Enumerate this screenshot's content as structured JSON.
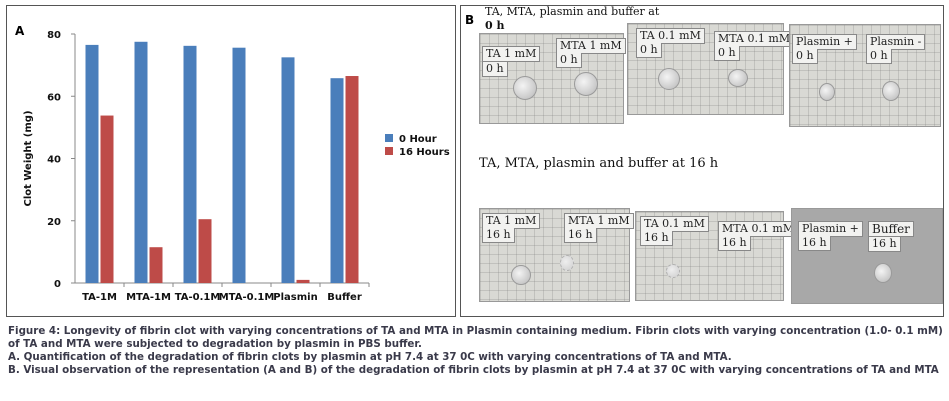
{
  "panel_a": {
    "label": "A"
  },
  "panel_b": {
    "label": "B",
    "heading_top_line1": "TA, MTA, plasmin and buffer at",
    "heading_top_line2": "0 h",
    "heading_mid": "TA, MTA, plasmin and buffer at 16 h",
    "photos": [
      {
        "tags": [
          "TA 1 mM",
          "0 h",
          "MTA 1 mM",
          "0 h"
        ]
      },
      {
        "tags": [
          "TA 0.1 mM",
          "0 h",
          "MTA 0.1 mM",
          "0 h"
        ]
      },
      {
        "tags": [
          "Plasmin +",
          "0 h",
          "Plasmin -",
          "0 h"
        ]
      },
      {
        "tags": [
          "TA 1 mM",
          "16 h",
          "MTA 1 mM",
          "16 h"
        ]
      },
      {
        "tags": [
          "TA 0.1 mM",
          "16 h",
          "MTA 0.1 mM",
          "16 h"
        ]
      },
      {
        "tags": [
          "Plasmin +",
          "16 h",
          "Buffer",
          "16 h"
        ]
      }
    ]
  },
  "chart_data": {
    "type": "bar",
    "title": "",
    "xlabel": "",
    "ylabel": "Clot Weight (mg)",
    "ylim": [
      0,
      80
    ],
    "yticks": [
      0,
      20,
      40,
      60,
      80
    ],
    "categories": [
      "TA-1M",
      "MTA-1M",
      "TA-0.1M",
      "MTA-0.1M",
      "Plasmin",
      "Buffer"
    ],
    "series": [
      {
        "name": "0 Hour",
        "color": "#4a7ebb",
        "values": [
          76.5,
          77.5,
          76.2,
          75.6,
          72.5,
          65.8
        ]
      },
      {
        "name": "16 Hours",
        "color": "#be4b48",
        "values": [
          53.8,
          11.5,
          20.5,
          0,
          1.0,
          66.5
        ]
      }
    ],
    "legend_position": "right",
    "grid": false
  },
  "caption": {
    "line1": "Figure 4: Longevity of fibrin clot with varying concentrations of TA  and MTA  in Plasmin containing medium. Fibrin clots with varying concentration (1.0- 0.1 mM) of TA and MTA were subjected to degradation by plasmin in PBS buffer.",
    "line2": "A. Quantification of the degradation of fibrin clots by plasmin at  pH 7.4 at 37 0C with varying concentrations of  TA and MTA.",
    "line3": "B. Visual observation of the representation (A and B) of the degradation of fibrin clots by plasmin at  pH 7.4 at 37 0C with varying concentrations of  TA and MTA"
  }
}
